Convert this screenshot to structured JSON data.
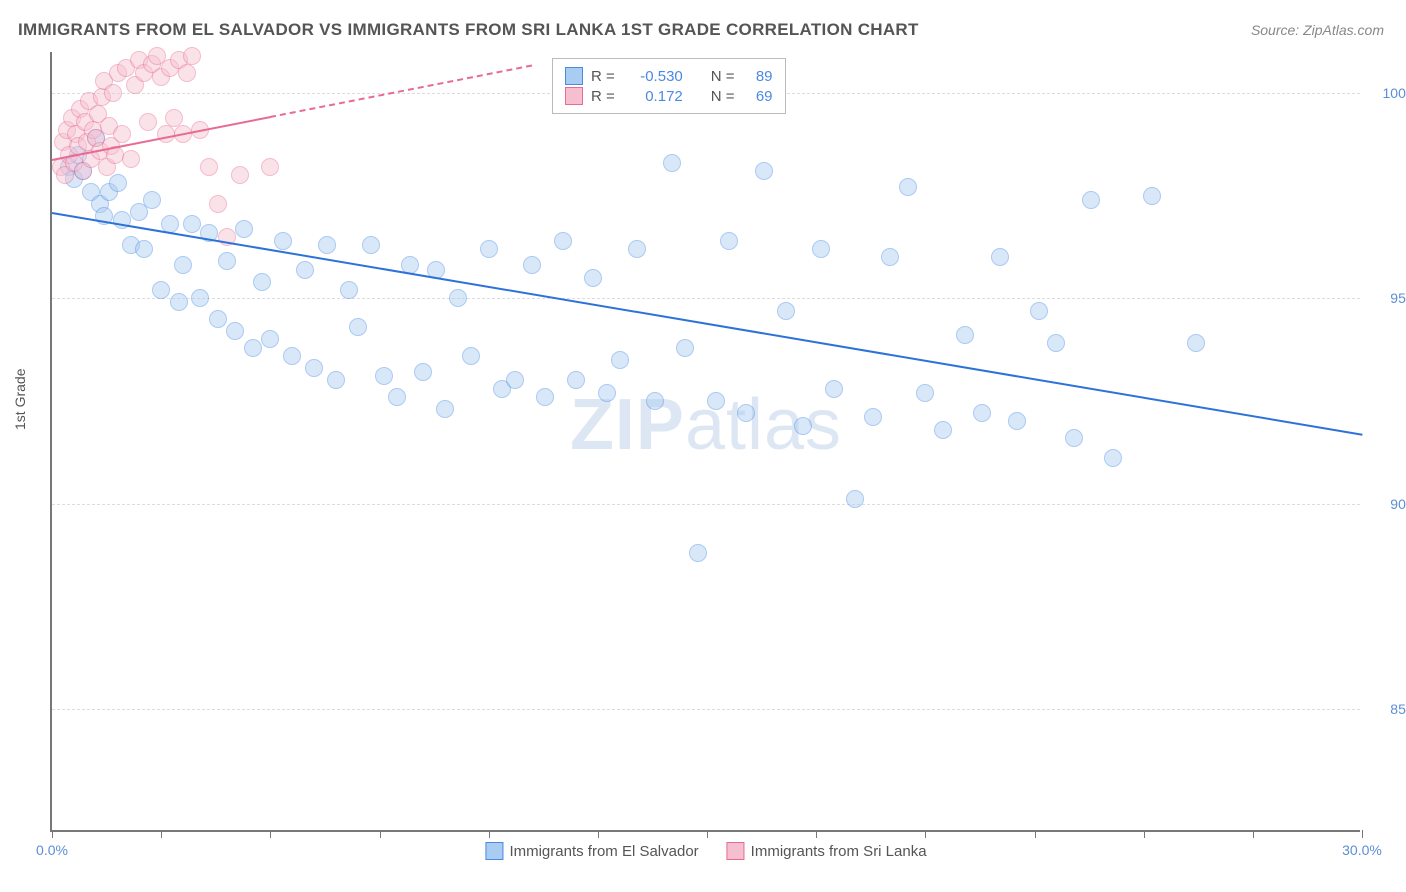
{
  "title": "IMMIGRANTS FROM EL SALVADOR VS IMMIGRANTS FROM SRI LANKA 1ST GRADE CORRELATION CHART",
  "source": "Source: ZipAtlas.com",
  "ylabel": "1st Grade",
  "watermark_bold": "ZIP",
  "watermark_rest": "atlas",
  "chart": {
    "type": "scatter",
    "xlim": [
      0,
      30
    ],
    "ylim": [
      82,
      101
    ],
    "xtick_positions": [
      0,
      2.5,
      5,
      7.5,
      10,
      12.5,
      15,
      17.5,
      20,
      22.5,
      25,
      27.5,
      30
    ],
    "xtick_labels": {
      "0": "0.0%",
      "30": "30.0%"
    },
    "ytick_positions": [
      85,
      90,
      95,
      100
    ],
    "ytick_labels": [
      "85.0%",
      "90.0%",
      "95.0%",
      "100.0%"
    ],
    "background_color": "#ffffff",
    "grid_color": "#dddddd",
    "axis_color": "#777777",
    "point_radius": 9,
    "point_opacity": 0.45,
    "series": [
      {
        "name": "Immigrants from El Salvador",
        "color_fill": "#a9cdf2",
        "color_stroke": "#4a8ae0",
        "r_value": "-0.530",
        "n_value": "89",
        "trend": {
          "x1": 0,
          "y1": 97.1,
          "x2": 30,
          "y2": 91.7,
          "color": "#2d72d9",
          "dash": false
        },
        "points": [
          [
            0.4,
            98.2
          ],
          [
            0.5,
            97.9
          ],
          [
            0.6,
            98.5
          ],
          [
            0.7,
            98.1
          ],
          [
            0.9,
            97.6
          ],
          [
            1.0,
            98.9
          ],
          [
            1.1,
            97.3
          ],
          [
            1.2,
            97.0
          ],
          [
            1.3,
            97.6
          ],
          [
            1.5,
            97.8
          ],
          [
            1.6,
            96.9
          ],
          [
            1.8,
            96.3
          ],
          [
            2.0,
            97.1
          ],
          [
            2.1,
            96.2
          ],
          [
            2.3,
            97.4
          ],
          [
            2.5,
            95.2
          ],
          [
            2.7,
            96.8
          ],
          [
            2.9,
            94.9
          ],
          [
            3.0,
            95.8
          ],
          [
            3.2,
            96.8
          ],
          [
            3.4,
            95.0
          ],
          [
            3.6,
            96.6
          ],
          [
            3.8,
            94.5
          ],
          [
            4.0,
            95.9
          ],
          [
            4.2,
            94.2
          ],
          [
            4.4,
            96.7
          ],
          [
            4.6,
            93.8
          ],
          [
            4.8,
            95.4
          ],
          [
            5.0,
            94.0
          ],
          [
            5.3,
            96.4
          ],
          [
            5.5,
            93.6
          ],
          [
            5.8,
            95.7
          ],
          [
            6.0,
            93.3
          ],
          [
            6.3,
            96.3
          ],
          [
            6.5,
            93.0
          ],
          [
            6.8,
            95.2
          ],
          [
            7.0,
            94.3
          ],
          [
            7.3,
            96.3
          ],
          [
            7.6,
            93.1
          ],
          [
            7.9,
            92.6
          ],
          [
            8.2,
            95.8
          ],
          [
            8.5,
            93.2
          ],
          [
            8.8,
            95.7
          ],
          [
            9.0,
            92.3
          ],
          [
            9.3,
            95.0
          ],
          [
            9.6,
            93.6
          ],
          [
            10.0,
            96.2
          ],
          [
            10.3,
            92.8
          ],
          [
            10.6,
            93.0
          ],
          [
            11.0,
            95.8
          ],
          [
            11.3,
            92.6
          ],
          [
            11.7,
            96.4
          ],
          [
            12.0,
            93.0
          ],
          [
            12.4,
            95.5
          ],
          [
            12.7,
            92.7
          ],
          [
            13.0,
            93.5
          ],
          [
            13.4,
            96.2
          ],
          [
            13.8,
            92.5
          ],
          [
            14.2,
            98.3
          ],
          [
            14.5,
            93.8
          ],
          [
            14.8,
            88.8
          ],
          [
            15.2,
            92.5
          ],
          [
            15.5,
            96.4
          ],
          [
            15.9,
            92.2
          ],
          [
            16.3,
            98.1
          ],
          [
            16.8,
            94.7
          ],
          [
            17.2,
            91.9
          ],
          [
            17.6,
            96.2
          ],
          [
            17.9,
            92.8
          ],
          [
            18.4,
            90.1
          ],
          [
            18.8,
            92.1
          ],
          [
            19.2,
            96.0
          ],
          [
            19.6,
            97.7
          ],
          [
            20.0,
            92.7
          ],
          [
            20.4,
            91.8
          ],
          [
            20.9,
            94.1
          ],
          [
            21.3,
            92.2
          ],
          [
            21.7,
            96.0
          ],
          [
            22.1,
            92.0
          ],
          [
            22.6,
            94.7
          ],
          [
            23.0,
            93.9
          ],
          [
            23.4,
            91.6
          ],
          [
            23.8,
            97.4
          ],
          [
            24.3,
            91.1
          ],
          [
            25.2,
            97.5
          ],
          [
            26.2,
            93.9
          ]
        ]
      },
      {
        "name": "Immigrants from Sri Lanka",
        "color_fill": "#f6bfd0",
        "color_stroke": "#e86b93",
        "r_value": "0.172",
        "n_value": "69",
        "trend": {
          "x1": 0,
          "y1": 98.4,
          "x2": 11,
          "y2": 100.7,
          "color": "#e86b93",
          "dash_from_x": 5.0
        },
        "points": [
          [
            0.2,
            98.2
          ],
          [
            0.25,
            98.8
          ],
          [
            0.3,
            98.0
          ],
          [
            0.35,
            99.1
          ],
          [
            0.4,
            98.5
          ],
          [
            0.45,
            99.4
          ],
          [
            0.5,
            98.3
          ],
          [
            0.55,
            99.0
          ],
          [
            0.6,
            98.7
          ],
          [
            0.65,
            99.6
          ],
          [
            0.7,
            98.1
          ],
          [
            0.75,
            99.3
          ],
          [
            0.8,
            98.8
          ],
          [
            0.85,
            99.8
          ],
          [
            0.9,
            98.4
          ],
          [
            0.95,
            99.1
          ],
          [
            1.0,
            98.9
          ],
          [
            1.05,
            99.5
          ],
          [
            1.1,
            98.6
          ],
          [
            1.15,
            99.9
          ],
          [
            1.2,
            100.3
          ],
          [
            1.25,
            98.2
          ],
          [
            1.3,
            99.2
          ],
          [
            1.35,
            98.7
          ],
          [
            1.4,
            100.0
          ],
          [
            1.45,
            98.5
          ],
          [
            1.5,
            100.5
          ],
          [
            1.6,
            99.0
          ],
          [
            1.7,
            100.6
          ],
          [
            1.8,
            98.4
          ],
          [
            1.9,
            100.2
          ],
          [
            2.0,
            100.8
          ],
          [
            2.1,
            100.5
          ],
          [
            2.2,
            99.3
          ],
          [
            2.3,
            100.7
          ],
          [
            2.4,
            100.9
          ],
          [
            2.5,
            100.4
          ],
          [
            2.6,
            99.0
          ],
          [
            2.7,
            100.6
          ],
          [
            2.8,
            99.4
          ],
          [
            2.9,
            100.8
          ],
          [
            3.0,
            99.0
          ],
          [
            3.1,
            100.5
          ],
          [
            3.2,
            100.9
          ],
          [
            3.4,
            99.1
          ],
          [
            3.6,
            98.2
          ],
          [
            3.8,
            97.3
          ],
          [
            4.0,
            96.5
          ],
          [
            4.3,
            98.0
          ],
          [
            5.0,
            98.2
          ]
        ]
      }
    ]
  },
  "legend_stats": {
    "r_label": "R =",
    "n_label": "N ="
  },
  "bottom_legend": [
    "Immigrants from El Salvador",
    "Immigrants from Sri Lanka"
  ]
}
